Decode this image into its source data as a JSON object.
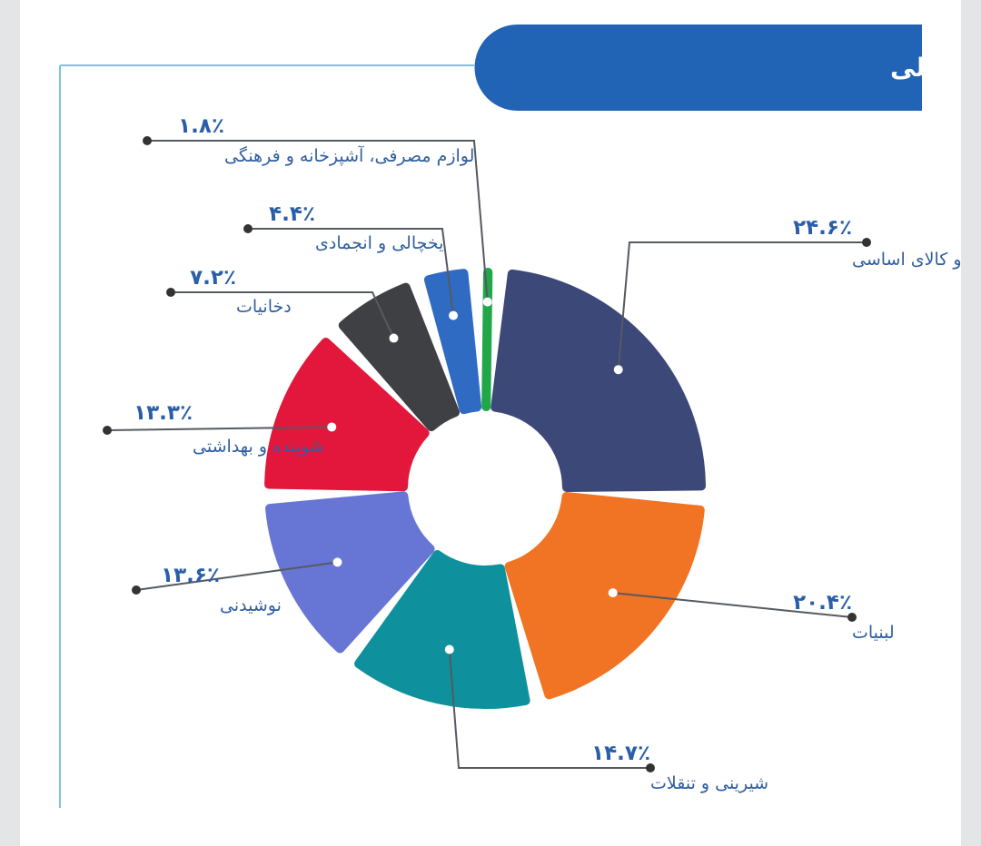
{
  "chart_data": {
    "type": "pie",
    "title": "اندازه بازار ریالی گروه های اصلی",
    "slices": [
      {
        "name": "خوار و بار و کالای اساسی",
        "value": 24.6,
        "label": "۲۴.۶٪",
        "color": "#3b4878"
      },
      {
        "name": "لبنیات",
        "value": 20.4,
        "label": "۲۰.۴٪",
        "color": "#f07423"
      },
      {
        "name": "شیرینی و تنقلات",
        "value": 14.7,
        "label": "۱۴.۷٪",
        "color": "#0e919c"
      },
      {
        "name": "نوشیدنی",
        "value": 13.6,
        "label": "۱۳.۶٪",
        "color": "#6776d4"
      },
      {
        "name": "شوینده و بهداشتی",
        "value": 13.3,
        "label": "۱۳.۳٪",
        "color": "#e3173b"
      },
      {
        "name": "دخانیات",
        "value": 7.2,
        "label": "۷.۲٪",
        "color": "#3f4043"
      },
      {
        "name": "یخچالی و انجمادی",
        "value": 4.4,
        "label": "۴.۴٪",
        "color": "#2f6bc3"
      },
      {
        "name": "لوازم مصرفی، آشپزخانه و فرهنگی",
        "value": 1.8,
        "label": "۱.۸٪",
        "color": "#21a64a"
      }
    ]
  }
}
